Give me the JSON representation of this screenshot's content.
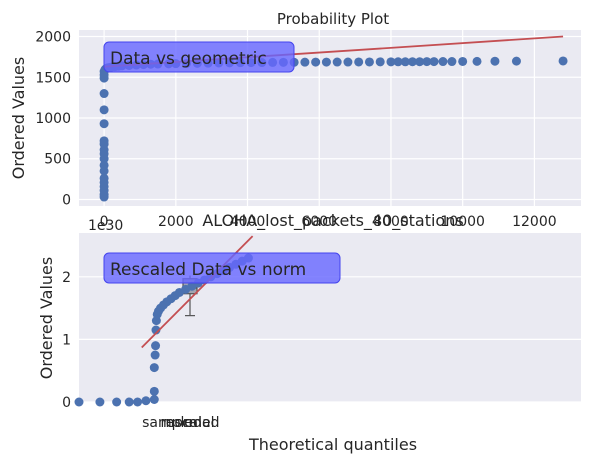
{
  "figure": {
    "colors": {
      "axes_bg": "#EAEAF2",
      "grid": "#FFFFFF",
      "point": "#4C72B0",
      "fit_line": "#C44E52",
      "annotation_fill": "#6666FF",
      "annotation_edge": "#4444EE",
      "boxplot_fill": "#A0A4B0",
      "boxplot_edge": "#555555"
    }
  },
  "chart_data": [
    {
      "type": "scatter",
      "title": "Probability Plot",
      "xlabel": "ALOHA_lost_packets_40_stations",
      "ylabel": "Ordered Values",
      "offset_text": "1e30",
      "annotation": "Data vs geometric",
      "xlim": [
        -700,
        13300
      ],
      "ylim": [
        -80,
        2080
      ],
      "x_ticks": [
        0,
        2000,
        4000,
        6000,
        8000,
        10000,
        12000
      ],
      "x_tick_labels": [
        "0",
        "2000",
        "4000",
        "6000",
        "8000",
        "10000",
        "12000"
      ],
      "y_ticks": [
        0,
        500,
        1000,
        1500,
        2000
      ],
      "y_tick_labels": [
        "0",
        "500",
        "1000",
        "1500",
        "2000"
      ],
      "grid": true,
      "series": [
        {
          "points": [
            [
              0,
              30
            ],
            [
              0,
              60
            ],
            [
              0,
              110
            ],
            [
              0,
              160
            ],
            [
              0,
              210
            ],
            [
              0,
              260
            ],
            [
              0,
              350
            ],
            [
              0,
              420
            ],
            [
              0,
              500
            ],
            [
              0,
              560
            ],
            [
              0,
              610
            ],
            [
              0,
              680
            ],
            [
              0,
              720
            ],
            [
              0,
              930
            ],
            [
              0,
              1100
            ],
            [
              0,
              1300
            ],
            [
              0,
              1490
            ],
            [
              0,
              1530
            ],
            [
              0,
              1570
            ],
            [
              20,
              1590
            ],
            [
              40,
              1600
            ],
            [
              70,
              1610
            ],
            [
              100,
              1615
            ],
            [
              150,
              1620
            ],
            [
              200,
              1625
            ],
            [
              300,
              1630
            ],
            [
              400,
              1635
            ],
            [
              500,
              1640
            ],
            [
              700,
              1645
            ],
            [
              900,
              1650
            ],
            [
              1100,
              1655
            ],
            [
              1300,
              1660
            ],
            [
              1500,
              1662
            ],
            [
              1800,
              1665
            ],
            [
              2000,
              1667
            ],
            [
              2300,
              1669
            ],
            [
              2600,
              1671
            ],
            [
              2900,
              1673
            ],
            [
              3200,
              1675
            ],
            [
              3500,
              1677
            ],
            [
              3800,
              1679
            ],
            [
              4100,
              1680
            ],
            [
              4400,
              1681
            ],
            [
              4700,
              1682
            ],
            [
              5000,
              1683
            ],
            [
              5300,
              1684
            ],
            [
              5600,
              1685
            ],
            [
              5900,
              1686
            ],
            [
              6200,
              1686
            ],
            [
              6500,
              1687
            ],
            [
              6800,
              1687
            ],
            [
              7100,
              1688
            ],
            [
              7400,
              1688
            ],
            [
              7700,
              1689
            ],
            [
              8000,
              1689
            ],
            [
              8200,
              1690
            ],
            [
              8400,
              1690
            ],
            [
              8600,
              1691
            ],
            [
              8800,
              1691
            ],
            [
              9000,
              1692
            ],
            [
              9200,
              1692
            ],
            [
              9450,
              1693
            ],
            [
              9700,
              1693
            ],
            [
              10000,
              1694
            ],
            [
              10400,
              1695
            ],
            [
              10900,
              1697
            ],
            [
              11500,
              1698
            ],
            [
              12800,
              1700
            ]
          ]
        }
      ],
      "fit_line": [
        [
          0,
          1630
        ],
        [
          12800,
          2000
        ]
      ]
    },
    {
      "type": "scatter",
      "title": "",
      "xlabel": "Theoretical quantiles",
      "ylabel": "Ordered Values",
      "annotation": "Rescaled Data vs norm",
      "x_tick_labels": [
        "sampled",
        "rescaled",
        "normal"
      ],
      "ylim": [
        0,
        2.7
      ],
      "y_ticks": [
        0,
        1,
        2
      ],
      "y_tick_labels": [
        "0",
        "1",
        "2"
      ],
      "grid": true,
      "series": [
        {
          "points": [
            [
              -2.2,
              0.0
            ],
            [
              -1.7,
              0.0
            ],
            [
              -1.3,
              0.0
            ],
            [
              -1.0,
              0.0
            ],
            [
              -0.8,
              0.0
            ],
            [
              -0.6,
              0.02
            ],
            [
              -0.4,
              0.04
            ],
            [
              -0.4,
              0.17
            ],
            [
              -0.4,
              0.55
            ],
            [
              -0.38,
              0.75
            ],
            [
              -0.37,
              0.9
            ],
            [
              -0.36,
              1.15
            ],
            [
              -0.35,
              1.3
            ],
            [
              -0.33,
              1.4
            ],
            [
              -0.3,
              1.45
            ],
            [
              -0.25,
              1.5
            ],
            [
              -0.18,
              1.55
            ],
            [
              -0.1,
              1.6
            ],
            [
              0.0,
              1.65
            ],
            [
              0.1,
              1.7
            ],
            [
              0.2,
              1.75
            ],
            [
              0.35,
              1.8
            ],
            [
              0.5,
              1.85
            ],
            [
              0.65,
              1.9
            ],
            [
              0.8,
              1.95
            ],
            [
              0.95,
              2.0
            ],
            [
              1.1,
              2.05
            ],
            [
              1.25,
              2.1
            ],
            [
              1.4,
              2.15
            ],
            [
              1.55,
              2.2
            ],
            [
              1.7,
              2.25
            ],
            [
              1.85,
              2.3
            ]
          ]
        }
      ],
      "fit_line": [
        [
          -0.7,
          0.87
        ],
        [
          1.95,
          2.65
        ]
      ],
      "boxplot": {
        "q1": 1.73,
        "median": 1.82,
        "q3": 1.97,
        "whisker_low": 1.38,
        "whisker_high": 2.02
      }
    }
  ]
}
